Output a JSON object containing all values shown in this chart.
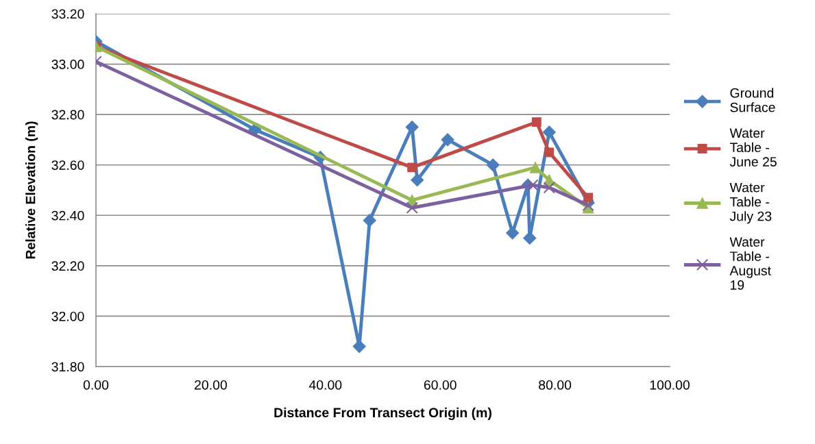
{
  "chart_data": {
    "type": "line",
    "xlabel": "Distance From Transect Origin (m)",
    "ylabel": "Relative Elevation (m)",
    "xlim": [
      0,
      100
    ],
    "xticks": [
      {
        "value": 0,
        "label": "0.00"
      },
      {
        "value": 20,
        "label": "20.00"
      },
      {
        "value": 40,
        "label": "40.00"
      },
      {
        "value": 60,
        "label": "60.00"
      },
      {
        "value": 80,
        "label": "80.00"
      },
      {
        "value": 100,
        "label": "100.00"
      }
    ],
    "ylim": [
      31.8,
      33.2
    ],
    "yticks": [
      {
        "value": 31.8,
        "label": "31.80"
      },
      {
        "value": 32.0,
        "label": "32.00"
      },
      {
        "value": 32.2,
        "label": "32.20"
      },
      {
        "value": 32.4,
        "label": "32.40"
      },
      {
        "value": 32.6,
        "label": "32.60"
      },
      {
        "value": 32.8,
        "label": "32.80"
      },
      {
        "value": 33.0,
        "label": "33.00"
      },
      {
        "value": 33.2,
        "label": "33.20"
      }
    ],
    "grid": "y",
    "legend": "right",
    "line_style": "solid",
    "series": [
      {
        "name": "Ground Surface",
        "color": "#4a7ebb",
        "marker": "diamond",
        "x": [
          0,
          27.7,
          39.1,
          45.9,
          47.7,
          55.1,
          56.0,
          61.3,
          69.2,
          72.6,
          75.3,
          75.6,
          79.0,
          85.8
        ],
        "values": [
          33.09,
          32.74,
          32.63,
          31.88,
          32.38,
          32.75,
          32.54,
          32.7,
          32.6,
          32.33,
          32.52,
          32.31,
          32.73,
          32.45
        ]
      },
      {
        "name": "Water Table - June 25",
        "color": "#be4b48",
        "marker": "square",
        "x": [
          0,
          55.1,
          76.8,
          79.0,
          85.8
        ],
        "values": [
          33.07,
          32.59,
          32.77,
          32.65,
          32.47
        ]
      },
      {
        "name": "Water Table - July 23",
        "color": "#98b954",
        "marker": "triangle",
        "x": [
          0,
          55.1,
          76.6,
          79.0,
          85.8
        ],
        "values": [
          33.07,
          32.46,
          32.59,
          32.54,
          32.43
        ]
      },
      {
        "name": "Water Table - August 19",
        "color": "#7d60a0",
        "marker": "cross",
        "x": [
          0,
          55.1,
          76.1,
          79.0,
          85.8
        ],
        "values": [
          33.01,
          32.43,
          32.52,
          32.51,
          32.44
        ]
      }
    ]
  }
}
